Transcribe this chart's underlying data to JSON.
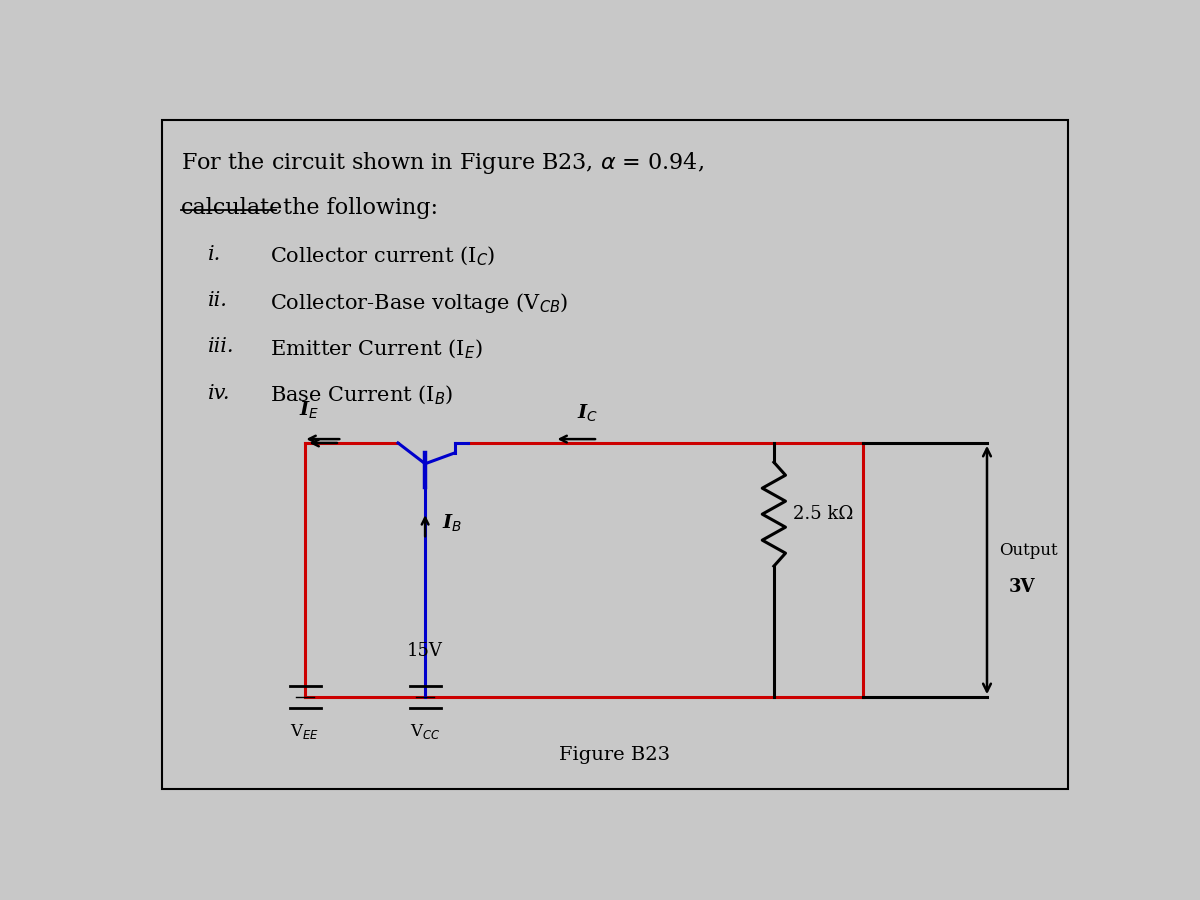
{
  "bg_color": "#c8c8c8",
  "border_color": "#000000",
  "item_labels_raw": [
    "i.",
    "ii.",
    "iii.",
    "iv."
  ],
  "item_texts": [
    "Collector current (I$_C$)",
    "Collector-Base voltage (V$_{CB}$)",
    "Emitter Current (I$_E$)",
    "Base Current (I$_B$)"
  ],
  "circuit_color_red": "#cc0000",
  "circuit_color_blue": "#0000cc",
  "circuit_color_black": "#000000",
  "resistor_label": "2.5 kΩ",
  "output_label": "Output",
  "output_voltage": "3V",
  "vcc_voltage": "15V",
  "vcc_bottom": "V$_{CC}$",
  "vee_label": "V$_{EE}$",
  "ie_label": "I$_E$",
  "ic_label": "I$_C$",
  "ib_label": "I$_B$",
  "figure_label": "Figure B23",
  "font_size_title": 16,
  "font_size_items": 15,
  "font_size_circuit": 13
}
